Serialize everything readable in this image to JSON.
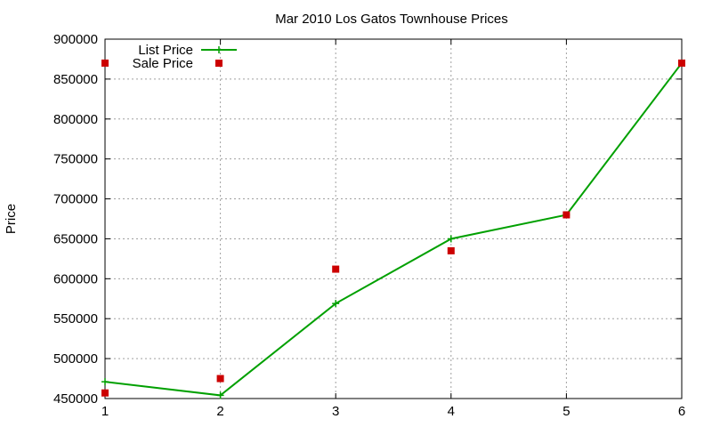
{
  "chart_data": {
    "type": "line",
    "title": "Mar 2010 Los Gatos Townhouse Prices",
    "xlabel": "",
    "ylabel": "Price",
    "xlim": [
      1,
      6
    ],
    "ylim": [
      450000,
      900000
    ],
    "x_ticks": [
      1,
      2,
      3,
      4,
      5,
      6
    ],
    "y_ticks": [
      450000,
      500000,
      550000,
      600000,
      650000,
      700000,
      750000,
      800000,
      850000,
      900000
    ],
    "grid": true,
    "legend_position": "top-left",
    "series": [
      {
        "name": "List Price",
        "style": "line-with-plus-markers",
        "color": "#00a000",
        "x": [
          1,
          2,
          3,
          4,
          5,
          6
        ],
        "values": [
          471000,
          454000,
          569000,
          650000,
          680000,
          870000
        ]
      },
      {
        "name": "Sale Price",
        "style": "square-markers",
        "color": "#cc0000",
        "x": [
          1,
          1,
          2,
          3,
          4,
          5,
          6
        ],
        "values": [
          457000,
          870000,
          475000,
          612000,
          635000,
          680000,
          870000
        ]
      }
    ]
  }
}
